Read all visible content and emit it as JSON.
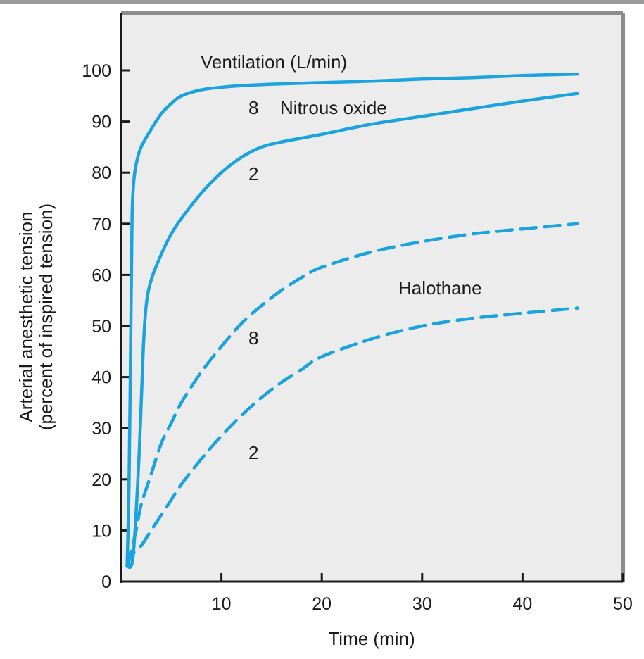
{
  "chart_data": {
    "type": "line",
    "xlabel": "Time (min)",
    "ylabel_line1": "Arterial anesthetic tension",
    "ylabel_line2": "(percent of inspired tension)",
    "xlim": [
      0,
      50
    ],
    "ylim": [
      0,
      100
    ],
    "xticks": [
      10,
      20,
      30,
      40,
      50
    ],
    "yticks": [
      0,
      10,
      20,
      30,
      40,
      50,
      60,
      70,
      80,
      90,
      100
    ],
    "grid": false,
    "colors": {
      "line": "#1aa3dd",
      "plot_bg": "#ececec",
      "frame": "#8c8c8c"
    },
    "annotations": {
      "legend_title": "Ventilation (L/min)",
      "n2o_8": "8",
      "n2o_label": "Nitrous oxide",
      "n2o_2": "2",
      "hal_label": "Halothane",
      "hal_8": "8",
      "hal_2": "2"
    },
    "series": [
      {
        "id": "n2o-8",
        "dashed": false,
        "x": [
          0.6,
          0.8,
          1.0,
          1.1,
          1.3,
          1.6,
          2,
          3,
          4,
          5,
          6,
          8,
          10,
          12,
          15,
          20,
          25,
          30,
          35,
          40,
          45.5
        ],
        "y": [
          3,
          20,
          55,
          72,
          79,
          82.5,
          85,
          88.5,
          91.5,
          93.5,
          95,
          96.2,
          96.7,
          97,
          97.3,
          97.6,
          97.9,
          98.3,
          98.6,
          99,
          99.3
        ]
      },
      {
        "id": "n2o-2",
        "dashed": false,
        "x": [
          0.6,
          1.2,
          1.8,
          2.2,
          2.5,
          3,
          4,
          5,
          6,
          8,
          10,
          12,
          14,
          16,
          20,
          25,
          30,
          35,
          40,
          45.5
        ],
        "y": [
          3,
          5,
          25,
          45,
          54,
          59,
          64,
          68,
          71,
          76,
          80,
          83,
          85,
          86,
          87.5,
          89.5,
          91,
          92.5,
          94,
          95.5
        ]
      },
      {
        "id": "hal-8",
        "dashed": false,
        "x": [
          0.6,
          1.0,
          1.5,
          2,
          3,
          4,
          5,
          6,
          8,
          10,
          12,
          14,
          16,
          18,
          20,
          25,
          30,
          35,
          40,
          45.5
        ],
        "y": [
          3,
          6,
          10,
          15,
          21,
          27,
          31,
          35,
          41,
          46,
          50.5,
          54,
          57,
          59.5,
          61.5,
          64.5,
          66.5,
          68,
          69,
          70
        ]
      },
      {
        "id": "hal-2",
        "dashed": false,
        "x": [
          0.6,
          1.0,
          1.5,
          2,
          3,
          4,
          5,
          6,
          8,
          10,
          12,
          14,
          16,
          18,
          20,
          25,
          30,
          35,
          40,
          45.5
        ],
        "y": [
          3,
          5,
          6,
          7,
          10,
          13,
          16,
          19,
          24,
          28.5,
          32.5,
          36,
          39,
          41.5,
          44,
          47.5,
          50,
          51.5,
          52.5,
          53.5
        ]
      }
    ]
  }
}
